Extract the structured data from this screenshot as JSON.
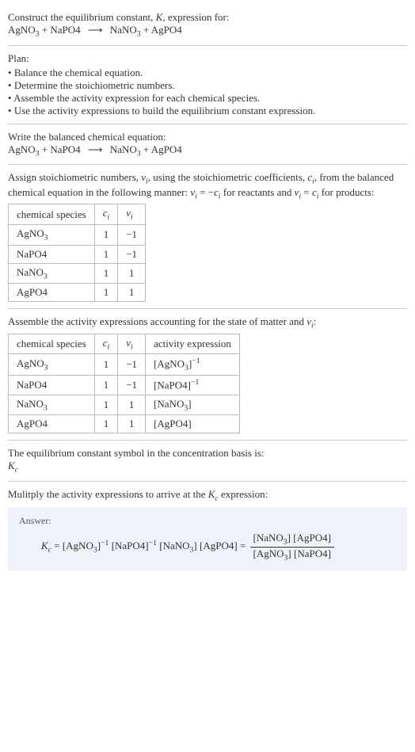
{
  "intro": {
    "line1_pre": "Construct the equilibrium constant, ",
    "line1_K": "K",
    "line1_post": ", expression for:"
  },
  "equation": {
    "r1": "AgNO",
    "r1_sub": "3",
    "plus": " + ",
    "r2": "NaPO4",
    "arrow": "⟶",
    "p1": "NaNO",
    "p1_sub": "3",
    "p2": "AgPO4"
  },
  "plan": {
    "heading": "Plan:",
    "items": [
      "Balance the chemical equation.",
      "Determine the stoichiometric numbers.",
      "Assemble the activity expression for each chemical species.",
      "Use the activity expressions to build the equilibrium constant expression."
    ]
  },
  "balanced_heading": "Write the balanced chemical equation:",
  "stoich_text": {
    "pre": "Assign stoichiometric numbers, ",
    "nu": "ν",
    "i": "i",
    "mid1": ", using the stoichiometric coefficients, ",
    "c": "c",
    "mid2": ", from the balanced chemical equation in the following manner: ",
    "eq1_lhs": "ν",
    "eq1_eq": " = −",
    "eq1_rhs": "c",
    "mid3": " for reactants and ",
    "eq2_lhs": "ν",
    "eq2_eq": " = ",
    "eq2_rhs": "c",
    "post": " for products:"
  },
  "table1": {
    "headers": {
      "h1": "chemical species",
      "h2": "c",
      "h2_sub": "i",
      "h3": "ν",
      "h3_sub": "i"
    },
    "rows": [
      {
        "sp_pre": "AgNO",
        "sp_sub": "3",
        "sp_post": "",
        "c": "1",
        "nu": "−1"
      },
      {
        "sp_pre": "NaPO4",
        "sp_sub": "",
        "sp_post": "",
        "c": "1",
        "nu": "−1"
      },
      {
        "sp_pre": "NaNO",
        "sp_sub": "3",
        "sp_post": "",
        "c": "1",
        "nu": "1"
      },
      {
        "sp_pre": "AgPO4",
        "sp_sub": "",
        "sp_post": "",
        "c": "1",
        "nu": "1"
      }
    ]
  },
  "activity_heading_pre": "Assemble the activity expressions accounting for the state of matter and ",
  "activity_heading_nu": "ν",
  "activity_heading_i": "i",
  "activity_heading_post": ":",
  "table2": {
    "headers": {
      "h1": "chemical species",
      "h2": "c",
      "h2_sub": "i",
      "h3": "ν",
      "h3_sub": "i",
      "h4": "activity expression"
    },
    "rows": [
      {
        "sp_pre": "AgNO",
        "sp_sub": "3",
        "c": "1",
        "nu": "−1",
        "act_pre": "[AgNO",
        "act_sub": "3",
        "act_post": "]",
        "act_sup": "−1"
      },
      {
        "sp_pre": "NaPO4",
        "sp_sub": "",
        "c": "1",
        "nu": "−1",
        "act_pre": "[NaPO4",
        "act_sub": "",
        "act_post": "]",
        "act_sup": "−1"
      },
      {
        "sp_pre": "NaNO",
        "sp_sub": "3",
        "c": "1",
        "nu": "1",
        "act_pre": "[NaNO",
        "act_sub": "3",
        "act_post": "]",
        "act_sup": ""
      },
      {
        "sp_pre": "AgPO4",
        "sp_sub": "",
        "c": "1",
        "nu": "1",
        "act_pre": "[AgPO4",
        "act_sub": "",
        "act_post": "]",
        "act_sup": ""
      }
    ]
  },
  "kc_symbol_line": "The equilibrium constant symbol in the concentration basis is:",
  "kc_symbol_K": "K",
  "kc_symbol_c": "c",
  "multiply_line_pre": "Mulitply the activity expressions to arrive at the ",
  "multiply_line_K": "K",
  "multiply_line_c": "c",
  "multiply_line_post": " expression:",
  "answer": {
    "label": "Answer:",
    "Kc_K": "K",
    "Kc_c": "c",
    "eq": " = ",
    "t1_pre": "[AgNO",
    "t1_sub": "3",
    "t1_post": "]",
    "t1_sup": "−1",
    "t2_pre": "[NaPO4",
    "t2_post": "]",
    "t2_sup": "−1",
    "t3_pre": "[NaNO",
    "t3_sub": "3",
    "t3_post": "]",
    "t4_pre": "[AgPO4",
    "t4_post": "]",
    "eq2": " = ",
    "num1_pre": "[NaNO",
    "num1_sub": "3",
    "num1_post": "]",
    "num2_pre": "[AgPO4",
    "num2_post": "]",
    "den1_pre": "[AgNO",
    "den1_sub": "3",
    "den1_post": "]",
    "den2_pre": "[NaPO4",
    "den2_post": "]"
  }
}
